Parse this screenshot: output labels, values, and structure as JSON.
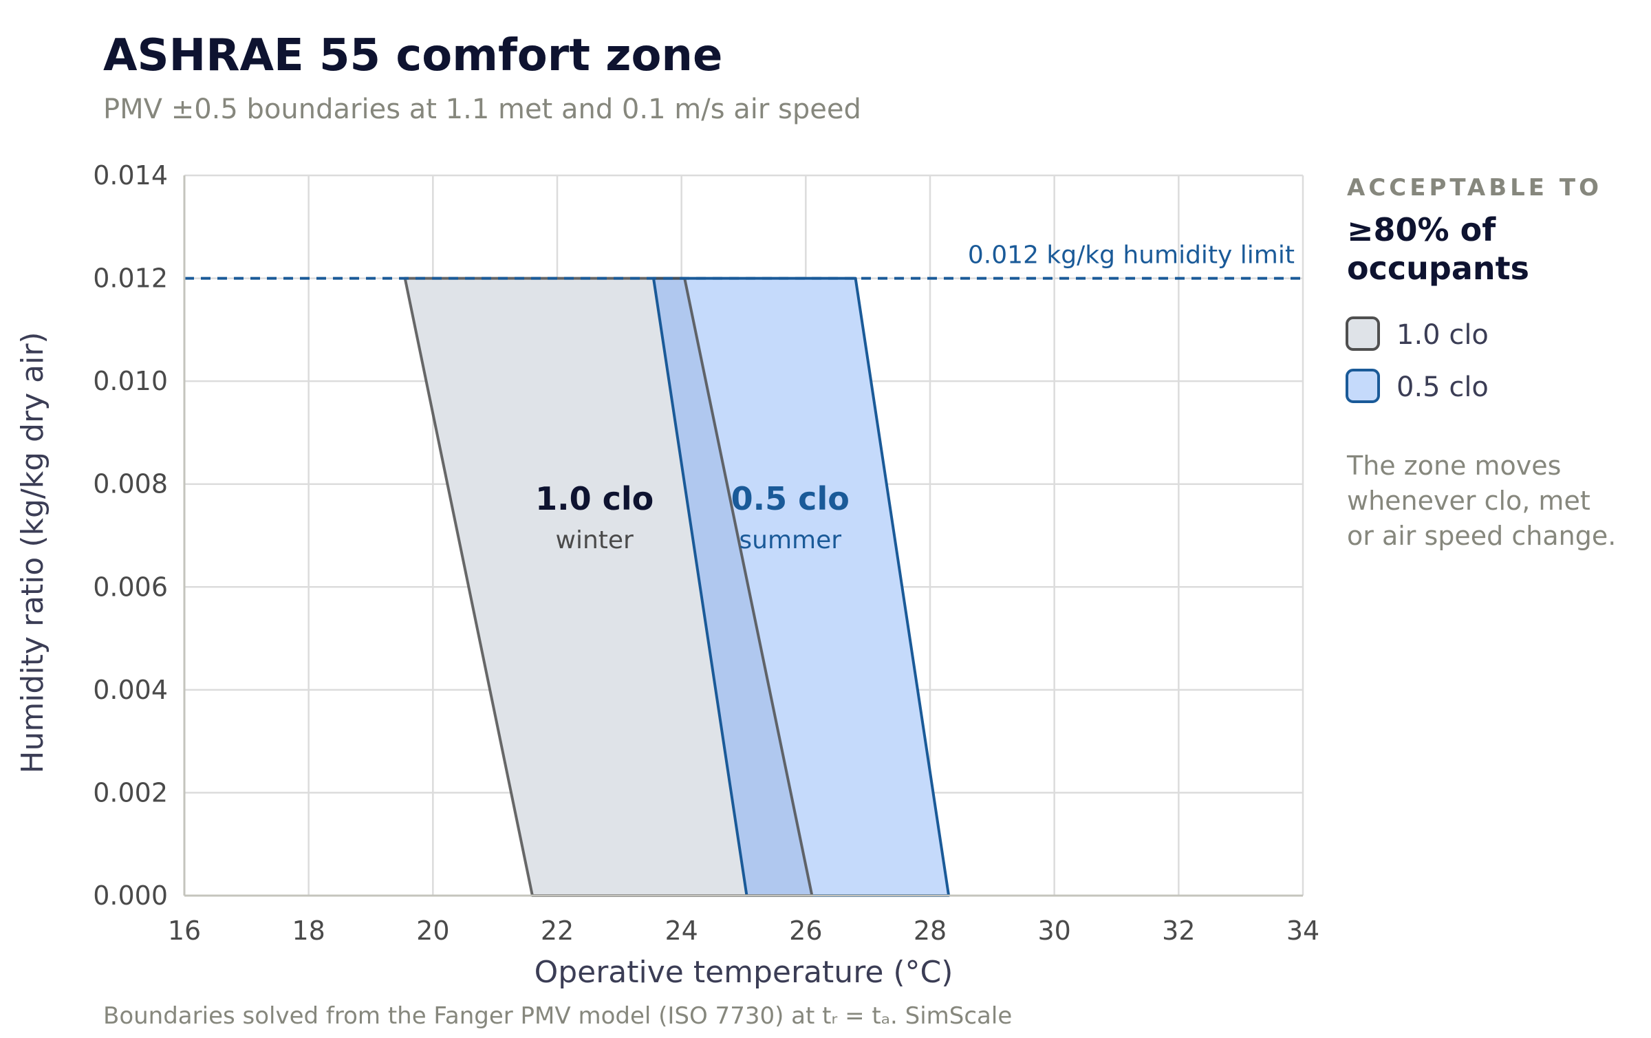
{
  "chart_data": {
    "type": "area",
    "title": "ASHRAE 55 comfort zone",
    "subtitle": "PMV ±0.5 boundaries at 1.1 met and 0.1 m/s air speed",
    "xlabel": "Operative temperature (°C)",
    "ylabel": "Humidity ratio (kg/kg dry air)",
    "xlim": [
      16,
      34
    ],
    "ylim": [
      0,
      0.014
    ],
    "x_ticks": [
      16,
      18,
      20,
      22,
      24,
      26,
      28,
      30,
      32,
      34
    ],
    "y_ticks": [
      0.0,
      0.002,
      0.004,
      0.006,
      0.008,
      0.01,
      0.012,
      0.014
    ],
    "y_tick_labels": [
      "0.000",
      "0.002",
      "0.004",
      "0.006",
      "0.008",
      "0.010",
      "0.012",
      "0.014"
    ],
    "grid": true,
    "series": [
      {
        "name": "1.0 clo",
        "sublabel": "winter",
        "polygon": [
          [
            21.6,
            0.0
          ],
          [
            26.1,
            0.0
          ],
          [
            24.05,
            0.012
          ],
          [
            19.55,
            0.012
          ]
        ],
        "label_position": [
          22.6,
          0.0075
        ],
        "fill": "#dfe3e8",
        "stroke": "#4f4f4f",
        "label_color": "#0e1330",
        "sublabel_color": "#4a4a4a"
      },
      {
        "name": "0.5 clo",
        "sublabel": "summer",
        "polygon": [
          [
            25.05,
            0.0
          ],
          [
            28.3,
            0.0
          ],
          [
            26.8,
            0.012
          ],
          [
            23.55,
            0.012
          ]
        ],
        "label_position": [
          25.75,
          0.0075
        ],
        "fill": "#c5dafb",
        "stroke": "#1a5a98",
        "label_color": "#1a5a98",
        "sublabel_color": "#1a5a98"
      }
    ],
    "overlap_fill": "#b0c8ef",
    "reference_line": {
      "y": 0.012,
      "label": "0.012 kg/kg humidity limit",
      "color": "#1a5a98",
      "style": "dashed"
    },
    "legend": {
      "placement": "right",
      "heading": "ACCEPTABLE TO",
      "title_lines": [
        "≥80% of",
        "occupants"
      ],
      "entries": [
        "1.0 clo",
        "0.5 clo"
      ],
      "note_lines": [
        "The zone moves",
        "whenever clo, met",
        "or air speed change."
      ]
    },
    "caption": "Boundaries solved from the Fanger PMV model (ISO 7730) at tᵣ = tₐ. SimScale"
  }
}
